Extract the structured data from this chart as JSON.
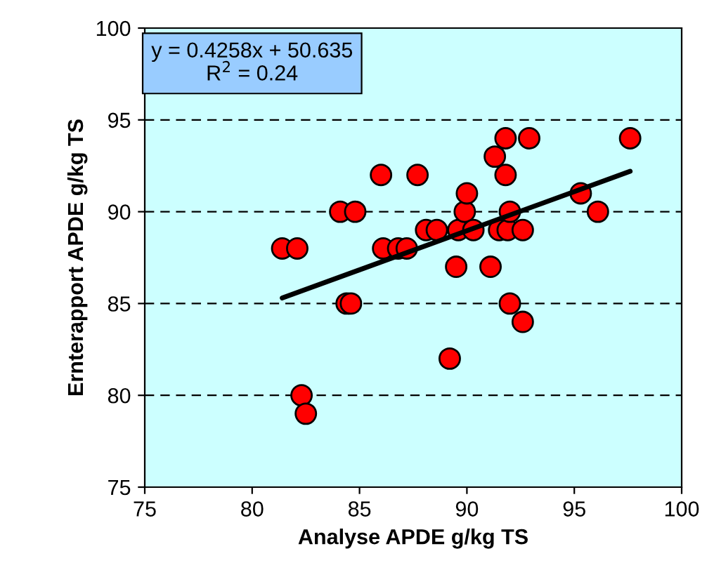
{
  "chart_data": {
    "type": "scatter",
    "xlabel": "Analyse APDE g/kg TS",
    "ylabel": "Ernterapport APDE g/kg TS",
    "xlim": [
      75,
      100
    ],
    "xticks": [
      75,
      80,
      85,
      90,
      95,
      100
    ],
    "ylim": [
      75,
      100
    ],
    "yticks": [
      75,
      80,
      85,
      90,
      95,
      100
    ],
    "grid": "y",
    "annotations": [
      "y = 0.4258x + 50.635\nR$^{2}$ = 0.24"
    ],
    "series": [
      {
        "marker": "circle",
        "color": "#ff0000",
        "x": [
          81.4,
          82.1,
          82.3,
          82.5,
          84.1,
          84.4,
          84.6,
          84.8,
          86.0,
          86.1,
          86.8,
          87.2,
          87.7,
          88.1,
          88.6,
          89.2,
          89.5,
          89.6,
          89.9,
          90.0,
          90.3,
          91.1,
          91.3,
          91.5,
          91.8,
          91.8,
          91.9,
          92.0,
          92.0,
          92.6,
          92.6,
          92.9,
          95.3,
          96.1,
          97.6
        ],
        "values": [
          88,
          88,
          80,
          79,
          90,
          85,
          85,
          90,
          92,
          88,
          88,
          88,
          92,
          89,
          89,
          82,
          87,
          89,
          90,
          91,
          89,
          87,
          93,
          89,
          92,
          94,
          89,
          85,
          90,
          84,
          89,
          94,
          91,
          90,
          94
        ]
      },
      {
        "type": "line",
        "marker": "none",
        "color": "#000000",
        "x": [
          81.4,
          97.6
        ],
        "values": [
          85.3,
          92.2
        ]
      }
    ]
  }
}
